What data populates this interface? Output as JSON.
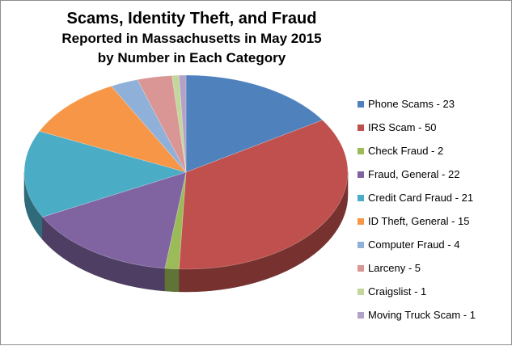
{
  "chart_data": {
    "type": "pie",
    "title": {
      "line1": "Scams, Identity Theft, and Fraud",
      "line2": "Reported in Massachusetts  in May 2015",
      "line3": "by Number in Each Category"
    },
    "legend_position": "right",
    "slices": [
      {
        "label": "Phone Scams - 23",
        "value": 23,
        "color": "#4f81bd"
      },
      {
        "label": "IRS Scam - 50",
        "value": 50,
        "color": "#c0504d"
      },
      {
        "label": "Check Fraud - 2",
        "value": 2,
        "color": "#9bbb59"
      },
      {
        "label": "Fraud, General - 22",
        "value": 22,
        "color": "#8064a2"
      },
      {
        "label": "Credit Card Fraud - 21",
        "value": 21,
        "color": "#4bacc6"
      },
      {
        "label": "ID Theft, General - 15",
        "value": 15,
        "color": "#f79646"
      },
      {
        "label": "Computer Fraud - 4",
        "value": 4,
        "color": "#8fb0d8"
      },
      {
        "label": "Larceny - 5",
        "value": 5,
        "color": "#d99694"
      },
      {
        "label": "Craigslist - 1",
        "value": 1,
        "color": "#c3d69b"
      },
      {
        "label": "Moving Truck Scam - 1",
        "value": 1,
        "color": "#b3a2c7"
      }
    ]
  }
}
